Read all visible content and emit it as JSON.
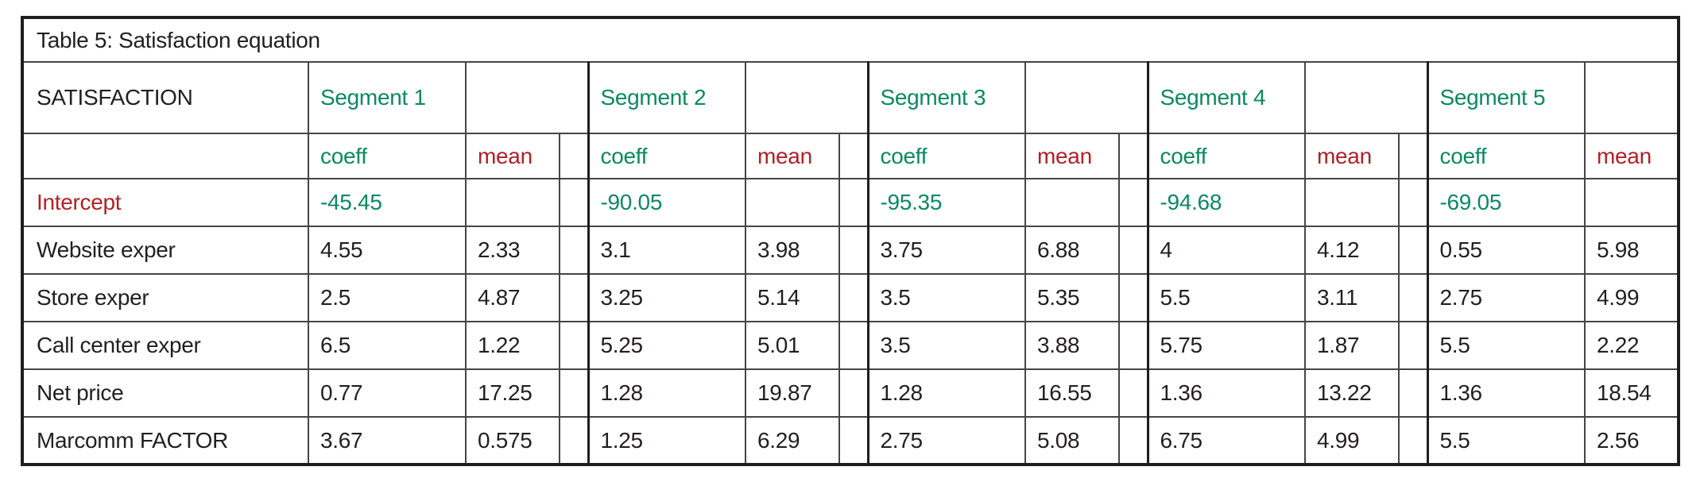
{
  "title": "Table 5: Satisfaction equation",
  "header": {
    "label": "SATISFACTION",
    "segments": [
      "Segment 1",
      "Segment 2",
      "Segment 3",
      "Segment 4",
      "Segment 5"
    ],
    "sub": {
      "coeff": "coeff",
      "mean": "mean"
    }
  },
  "rows": [
    {
      "label": "Intercept",
      "label_style": "red",
      "value_style": "green",
      "cells": [
        [
          "-45.45",
          ""
        ],
        [
          "-90.05",
          ""
        ],
        [
          "-95.35",
          ""
        ],
        [
          "-94.68",
          ""
        ],
        [
          "-69.05",
          ""
        ]
      ]
    },
    {
      "label": "Website exper",
      "label_style": "black",
      "value_style": "black",
      "cells": [
        [
          "4.55",
          "2.33"
        ],
        [
          "3.1",
          "3.98"
        ],
        [
          "3.75",
          "6.88"
        ],
        [
          "4",
          "4.12"
        ],
        [
          "0.55",
          "5.98"
        ]
      ]
    },
    {
      "label": "Store exper",
      "label_style": "black",
      "value_style": "black",
      "cells": [
        [
          "2.5",
          "4.87"
        ],
        [
          "3.25",
          "5.14"
        ],
        [
          "3.5",
          "5.35"
        ],
        [
          "5.5",
          "3.11"
        ],
        [
          "2.75",
          "4.99"
        ]
      ]
    },
    {
      "label": "Call center exper",
      "label_style": "black",
      "value_style": "black",
      "cells": [
        [
          "6.5",
          "1.22"
        ],
        [
          "5.25",
          "5.01"
        ],
        [
          "3.5",
          "3.88"
        ],
        [
          "5.75",
          "1.87"
        ],
        [
          "5.5",
          "2.22"
        ]
      ]
    },
    {
      "label": "Net price",
      "label_style": "black",
      "value_style": "black",
      "cells": [
        [
          "0.77",
          "17.25"
        ],
        [
          "1.28",
          "19.87"
        ],
        [
          "1.28",
          "16.55"
        ],
        [
          "1.36",
          "13.22"
        ],
        [
          "1.36",
          "18.54"
        ]
      ]
    },
    {
      "label": "Marcomm FACTOR",
      "label_style": "black",
      "value_style": "black",
      "cells": [
        [
          "3.67",
          "0.575"
        ],
        [
          "1.25",
          "6.29"
        ],
        [
          "2.75",
          "5.08"
        ],
        [
          "6.75",
          "4.99"
        ],
        [
          "5.5",
          "2.56"
        ]
      ]
    }
  ],
  "colors": {
    "green": "#0A8A5E",
    "red": "#B22026",
    "text": "#231F20",
    "border": "#454545",
    "outer_border": "#1E1E1E",
    "background": "#FFFFFF"
  }
}
